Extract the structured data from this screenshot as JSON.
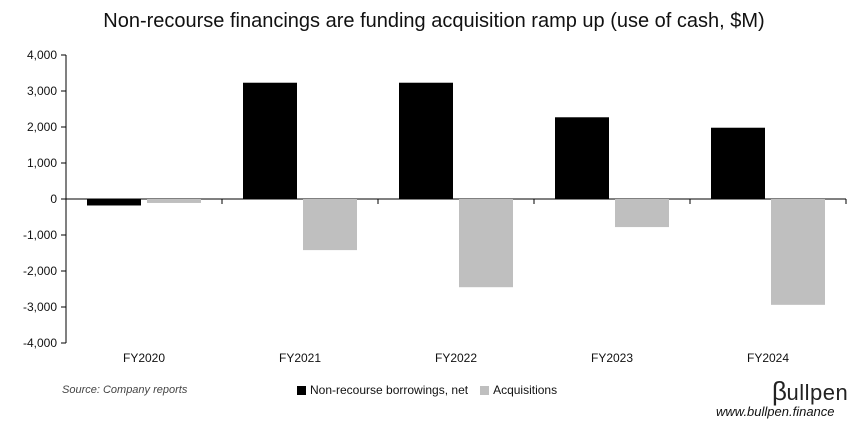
{
  "chart_data": {
    "type": "bar",
    "title": "Non-recourse financings are funding acquisition ramp up (use of cash, $M)",
    "categories": [
      "FY2020",
      "FY2021",
      "FY2022",
      "FY2023",
      "FY2024"
    ],
    "series": [
      {
        "name": "Non-recourse borrowings, net",
        "values": [
          -180,
          3230,
          3230,
          2270,
          1980
        ],
        "color": "#000000"
      },
      {
        "name": "Acquisitions",
        "values": [
          -110,
          -1420,
          -2450,
          -780,
          -2940
        ],
        "color": "#bfbfbf"
      }
    ],
    "ylim": [
      -4000,
      4000
    ],
    "yticks": [
      4000,
      3000,
      2000,
      1000,
      0,
      -1000,
      -2000,
      -3000,
      -4000
    ],
    "ytick_labels": [
      "4,000",
      "3,000",
      "2,000",
      "1,000",
      "0",
      "-1,000",
      "-2,000",
      "-3,000",
      "-4,000"
    ],
    "grid": false,
    "legend_position": "bottom"
  },
  "footer": {
    "source": "Source: Company reports",
    "logo_text": "ullpen",
    "logo_mark": "β",
    "website": "www.bullpen.finance"
  }
}
